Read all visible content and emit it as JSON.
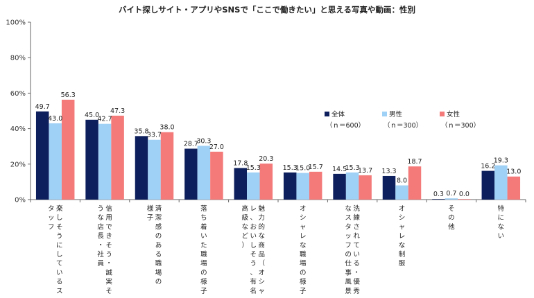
{
  "chart_data": {
    "type": "bar",
    "title": "バイト探しサイト・アプリやSNSで「ここで働きたい」と思える写真や動画：性別",
    "ylim": [
      0,
      100
    ],
    "yticks": [
      "0%",
      "20%",
      "40%",
      "60%",
      "80%",
      "100%"
    ],
    "categories": [
      "楽しそうにしているスタッフ",
      "信用できそう・誠実そうな店長・社員",
      "清潔感のある職場の様子",
      "落ち着いた職場の様子",
      "魅力的な商品（オシャレ、おいしそう、有名、高級など）",
      "オシャレな職場の様子",
      "洗練されている・優秀なスタッフの仕事風景",
      "オシャレな制服",
      "その他",
      "特にない"
    ],
    "category_lines": [
      [
        "楽しそうにしているス",
        "タッフ"
      ],
      [
        "信用できそう・誠実そ",
        "うな店長・社員"
      ],
      [
        "清潔感のある職場の",
        "様子"
      ],
      [
        "落ち着いた職場の様子"
      ],
      [
        "魅力的な商品（オシャ",
        "レ、おいしそう、有名、",
        "高級など）"
      ],
      [
        "オシャレな職場の様子"
      ],
      [
        "洗練されている・優秀",
        "なスタッフの仕事風景"
      ],
      [
        "オシャレな制服"
      ],
      [
        "その他"
      ],
      [
        "特にない"
      ]
    ],
    "series": [
      {
        "name": "全体",
        "n": "（ｎ＝600）",
        "color": "#0d1f5c",
        "values": [
          49.7,
          45.0,
          35.8,
          28.7,
          17.8,
          15.3,
          14.5,
          13.3,
          0.3,
          16.2
        ]
      },
      {
        "name": "男性",
        "n": "（ｎ＝300）",
        "color": "#9fd0f5",
        "values": [
          43.0,
          42.7,
          33.7,
          30.3,
          15.3,
          15.0,
          15.3,
          8.0,
          0.7,
          19.3
        ]
      },
      {
        "name": "女性",
        "n": "（ｎ＝300）",
        "color": "#f47a7a",
        "values": [
          56.3,
          47.3,
          38.0,
          27.0,
          20.3,
          15.7,
          13.7,
          18.7,
          0.0,
          13.0
        ]
      }
    ],
    "value_labels": [
      [
        "49.7",
        "45.0",
        "35.8",
        "28.7",
        "17.8",
        "15.3",
        "14.5",
        "13.3",
        "0.3",
        "16.2"
      ],
      [
        "43.0",
        "42.7",
        "33.7",
        "30.3",
        "15.3",
        "15.0",
        "15.3",
        "8.0",
        "0.7",
        "19.3"
      ],
      [
        "56.3",
        "47.3",
        "38.0",
        "27.0",
        "20.3",
        "15.7",
        "13.7",
        "18.7",
        "0.0",
        "13.0"
      ]
    ],
    "grid": false,
    "legend_position": "right"
  }
}
